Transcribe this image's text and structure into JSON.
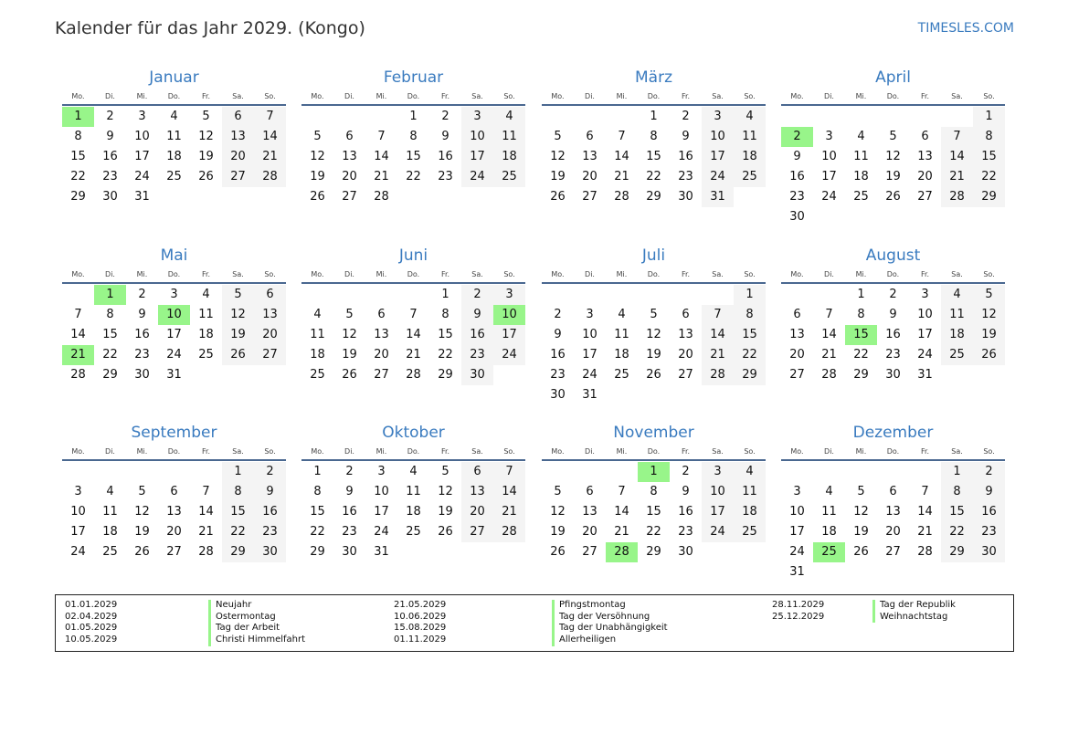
{
  "header": {
    "title": "Kalender für das Jahr 2029. (Kongo)",
    "brand": "TIMESLES.COM"
  },
  "year": 2029,
  "colors": {
    "accent": "#3a7bbf",
    "holiday": "#98f58a",
    "weekend": "#f4f4f4",
    "rule": "#4a6890"
  },
  "weekdays": [
    "Mo.",
    "Di.",
    "Mi.",
    "Do.",
    "Fr.",
    "Sa.",
    "So."
  ],
  "months": [
    "Januar",
    "Februar",
    "März",
    "April",
    "Mai",
    "Juni",
    "Juli",
    "August",
    "September",
    "Oktober",
    "November",
    "Dezember"
  ],
  "holidays": [
    {
      "date": "01.01.2029",
      "name": "Neujahr"
    },
    {
      "date": "02.04.2029",
      "name": "Ostermontag"
    },
    {
      "date": "01.05.2029",
      "name": "Tag der Arbeit"
    },
    {
      "date": "10.05.2029",
      "name": "Christi Himmelfahrt"
    },
    {
      "date": "21.05.2029",
      "name": "Pfingstmontag"
    },
    {
      "date": "10.06.2029",
      "name": "Tag der Versöhnung"
    },
    {
      "date": "15.08.2029",
      "name": "Tag der Unabhängigkeit"
    },
    {
      "date": "01.11.2029",
      "name": "Allerheiligen"
    },
    {
      "date": "28.11.2029",
      "name": "Tag der Republik"
    },
    {
      "date": "25.12.2029",
      "name": "Weihnachtstag"
    }
  ]
}
